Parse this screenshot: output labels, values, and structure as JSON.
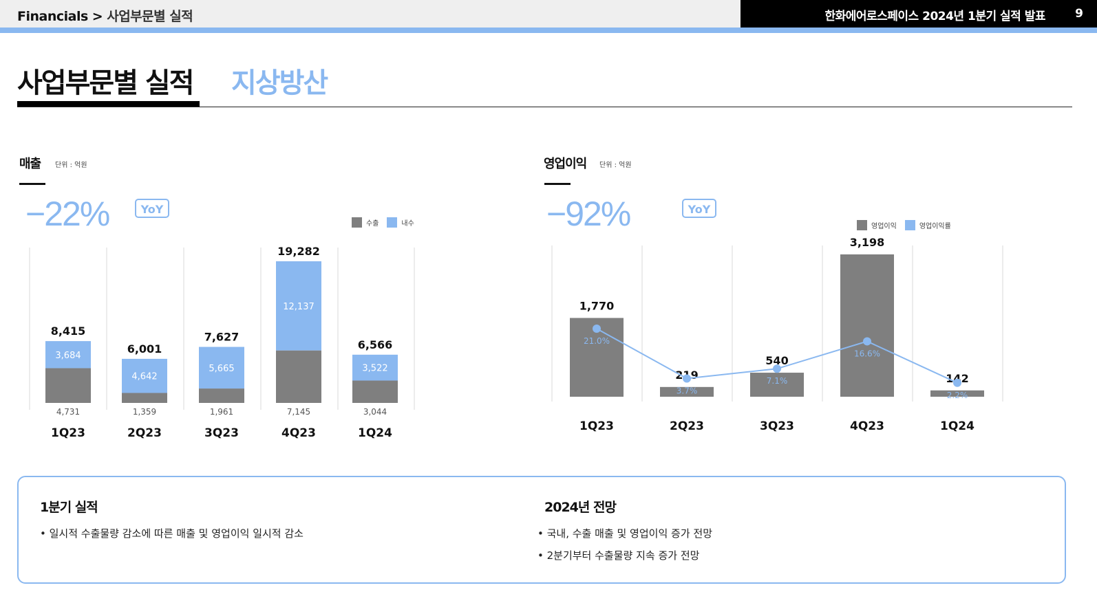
{
  "header": {
    "breadcrumb_root": "Financials",
    "breadcrumb_sep": ">",
    "breadcrumb_page": "사업부문별 실적",
    "deck_title": "한화에어로스페이스 2024년 1분기 실적 발표",
    "page_number": "9"
  },
  "page": {
    "title": "사업부문별 실적",
    "subtitle": "지상방산"
  },
  "revenue": {
    "title": "매출",
    "unit": "단위 : 억원",
    "yoy_value": "−22%",
    "yoy_badge": "YoY",
    "legend": [
      "수출",
      "내수"
    ]
  },
  "op_income": {
    "title": "영업이익",
    "unit": "단위 : 억원",
    "yoy_value": "−92%",
    "yoy_badge": "YoY",
    "legend": [
      "영업이익",
      "영업이익률"
    ]
  },
  "colors": {
    "accent_blue": "#8ab8f0",
    "bar_gray": "#7f7f7f",
    "black": "#000000"
  },
  "chart_data": [
    {
      "type": "bar",
      "stacked": true,
      "categories": [
        "1Q23",
        "2Q23",
        "3Q23",
        "4Q23",
        "1Q24"
      ],
      "series": [
        {
          "name": "수출",
          "values": [
            4731,
            1359,
            1961,
            7145,
            3044
          ],
          "labels": [
            "4,731",
            "1,359",
            "1,961",
            "7,145",
            "3,044"
          ]
        },
        {
          "name": "내수",
          "values": [
            3684,
            4642,
            5665,
            12137,
            3522
          ],
          "labels": [
            "3,684",
            "4,642",
            "5,665",
            "12,137",
            "3,522"
          ]
        }
      ],
      "totals": [
        8415,
        6001,
        7627,
        19282,
        6566
      ],
      "total_labels": [
        "8,415",
        "6,001",
        "7,627",
        "19,282",
        "6,566"
      ],
      "ylim": [
        0,
        19282
      ]
    },
    {
      "type": "bar",
      "categories": [
        "1Q23",
        "2Q23",
        "3Q23",
        "4Q23",
        "1Q24"
      ],
      "series": [
        {
          "name": "영업이익",
          "values": [
            1770,
            219,
            540,
            3198,
            142
          ],
          "labels": [
            "1,770",
            "219",
            "540",
            "3,198",
            "142"
          ]
        },
        {
          "name": "영업이익률",
          "type": "line",
          "values": [
            21.0,
            3.7,
            7.1,
            16.6,
            2.2
          ],
          "labels": [
            "21.0%",
            "3.7%",
            "7.1%",
            "16.6%",
            "2.2%"
          ]
        }
      ],
      "ylim": [
        0,
        3198
      ]
    }
  ],
  "summary": {
    "left_title": "1분기 실적",
    "left_items": [
      "• 일시적 수출물량 감소에 따른 매출 및 영업이익 일시적 감소"
    ],
    "right_title": "2024년 전망",
    "right_items": [
      "• 국내, 수출 매출 및 영업이익 증가 전망",
      "• 2분기부터 수출물량 지속 증가 전망"
    ]
  }
}
